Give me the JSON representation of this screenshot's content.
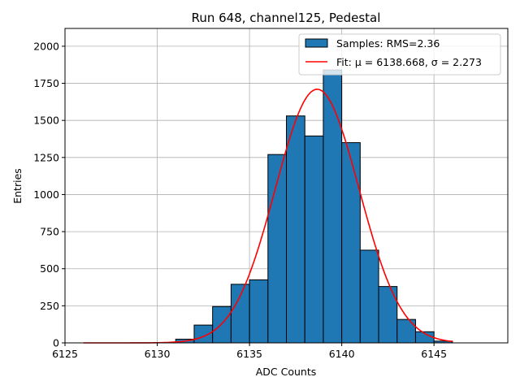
{
  "chart_data": {
    "type": "bar",
    "title": "Run 648, channel125, Pedestal",
    "xlabel": "ADC Counts",
    "ylabel": "Entries",
    "xlim": [
      6125,
      6149
    ],
    "ylim": [
      0,
      2120
    ],
    "xticks": [
      6125,
      6130,
      6135,
      6140,
      6145
    ],
    "yticks": [
      0,
      250,
      500,
      750,
      1000,
      1250,
      1500,
      1750,
      2000
    ],
    "grid": true,
    "legend_position": "top-right",
    "bins": [
      {
        "x0": 6131,
        "x1": 6132,
        "value": 25
      },
      {
        "x0": 6132,
        "x1": 6133,
        "value": 120
      },
      {
        "x0": 6133,
        "x1": 6134,
        "value": 245
      },
      {
        "x0": 6134,
        "x1": 6135,
        "value": 395
      },
      {
        "x0": 6135,
        "x1": 6136,
        "value": 425
      },
      {
        "x0": 6136,
        "x1": 6137,
        "value": 1270
      },
      {
        "x0": 6137,
        "x1": 6138,
        "value": 1530
      },
      {
        "x0": 6138,
        "x1": 6139,
        "value": 1395
      },
      {
        "x0": 6139,
        "x1": 6140,
        "value": 1840
      },
      {
        "x0": 6140,
        "x1": 6141,
        "value": 1350
      },
      {
        "x0": 6141,
        "x1": 6142,
        "value": 625
      },
      {
        "x0": 6142,
        "x1": 6143,
        "value": 380
      },
      {
        "x0": 6143,
        "x1": 6144,
        "value": 158
      },
      {
        "x0": 6144,
        "x1": 6145,
        "value": 75
      },
      {
        "x0": 6145,
        "x1": 6146,
        "value": 12
      }
    ],
    "fit": {
      "mu": 6138.668,
      "sigma": 2.273,
      "amplitude": 1710,
      "x_range": [
        6126,
        6146
      ]
    },
    "series": [
      {
        "name": "Samples: RMS=2.36",
        "kind": "histogram",
        "color": "#1f77b4"
      },
      {
        "name": "Fit: μ = 6138.668, σ = 2.273",
        "kind": "gaussian-fit",
        "color": "#ff0000"
      }
    ]
  }
}
